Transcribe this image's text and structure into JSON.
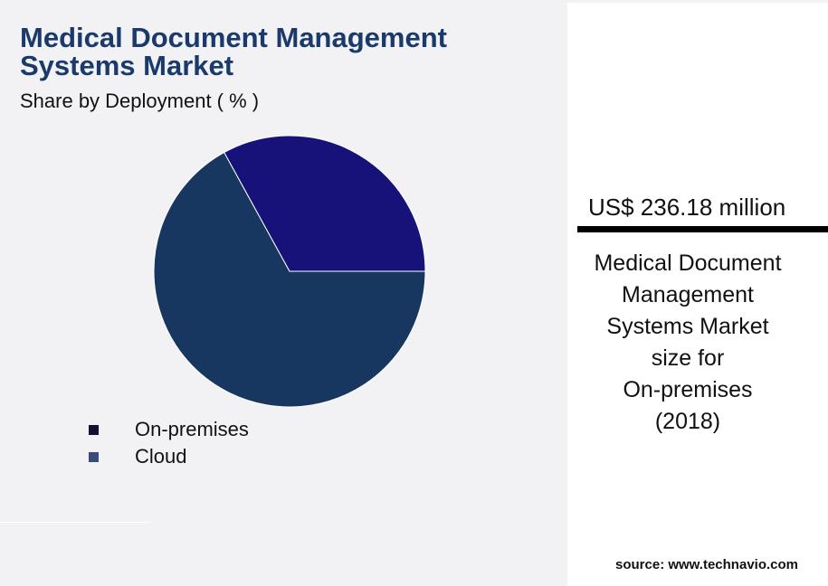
{
  "title": "Medical Document Management Systems Market",
  "subtitle": "Share by Deployment ( % )",
  "chart_data": {
    "type": "pie",
    "categories": [
      "On-premises",
      "Cloud"
    ],
    "values": [
      67,
      33
    ],
    "colors": [
      "#173761",
      "#17127a"
    ],
    "legend_colors": [
      "#111133",
      "#3b4a7a"
    ],
    "title": "Medical Document Management Systems Market",
    "legend_position": "bottom-left"
  },
  "highlight": {
    "value": "US$ 236.18 million",
    "description_lines": [
      "Medical Document",
      "Management",
      "Systems Market",
      "size for",
      "On-premises",
      "(2018)"
    ]
  },
  "source": "source: www.technavio.com"
}
